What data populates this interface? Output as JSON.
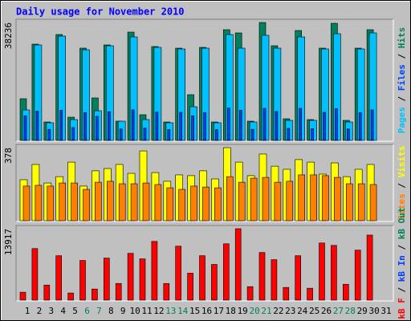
{
  "title": "Daily usage for November 2010",
  "chart_data": [
    {
      "type": "bar",
      "ylim": [
        0,
        38236
      ],
      "yticks": [
        38236
      ],
      "legend": [
        {
          "text": "Pages",
          "color": "#00c0ff"
        },
        {
          "text": "Files",
          "color": "#0040ff"
        },
        {
          "text": "Hits",
          "color": "#00805c"
        }
      ],
      "separator": " / ",
      "series": [
        {
          "color": "#00805c",
          "values": [
            13525,
            31212,
            5982,
            34333,
            7543,
            29912,
            13785,
            30952,
            6242,
            35114,
            8323,
            30432,
            5982,
            29912,
            14826,
            30172,
            5982,
            35894,
            34854,
            6242,
            38236,
            30692,
            7023,
            35634,
            6763,
            29912,
            37975,
            6503,
            29912,
            35894,
            null
          ]
        },
        {
          "color": "#00c0ff",
          "values": [
            9884,
            30952,
            5722,
            33813,
            6763,
            29391,
            9624,
            30692,
            6242,
            33553,
            6763,
            30172,
            5722,
            29651,
            10924,
            29912,
            5722,
            34333,
            29912,
            5982,
            34073,
            29912,
            6503,
            33553,
            6503,
            29651,
            34593,
            5982,
            29651,
            34853,
            null
          ]
        },
        {
          "color": "#0040ff",
          "values": [
            8000,
            9500,
            3600,
            9800,
            4200,
            9000,
            7800,
            9300,
            3700,
            9900,
            4000,
            9200,
            3500,
            9100,
            8000,
            9000,
            3500,
            10500,
            9800,
            3600,
            10400,
            9400,
            3900,
            10400,
            3800,
            9100,
            10300,
            3700,
            9000,
            9900,
            null
          ]
        }
      ]
    },
    {
      "type": "bar",
      "ylim": [
        0,
        378
      ],
      "yticks": [
        378
      ],
      "legend": [
        {
          "text": "Sites",
          "color": "#ff8000"
        },
        {
          "text": "Visits",
          "color": "#ffff00"
        }
      ],
      "separator": " / ",
      "series": [
        {
          "color": "#ffff00",
          "values": [
            212,
            291,
            195,
            228,
            303,
            179,
            258,
            270,
            291,
            245,
            361,
            249,
            204,
            237,
            233,
            258,
            216,
            378,
            303,
            233,
            345,
            282,
            266,
            316,
            303,
            241,
            299,
            228,
            266,
            291,
            null
          ]
        },
        {
          "color": "#ff8000",
          "values": [
            179,
            183,
            179,
            195,
            195,
            162,
            199,
            204,
            191,
            191,
            195,
            187,
            170,
            162,
            179,
            174,
            170,
            228,
            199,
            220,
            224,
            199,
            204,
            237,
            237,
            233,
            224,
            191,
            191,
            187,
            null
          ]
        }
      ]
    },
    {
      "type": "bar",
      "ylim": [
        0,
        13917
      ],
      "yticks": [
        13917
      ],
      "legend": [
        {
          "text": "kB F",
          "color": "#ff0000"
        },
        {
          "text": "kB In",
          "color": "#0040ff"
        },
        {
          "text": "kB Out",
          "color": "#00805c"
        }
      ],
      "separator": " / ",
      "categories": [
        "1",
        "2",
        "3",
        "4",
        "5",
        "6",
        "7",
        "8",
        "9",
        "10",
        "11",
        "12",
        "13",
        "14",
        "15",
        "16",
        "17",
        "18",
        "19",
        "20",
        "21",
        "22",
        "23",
        "24",
        "25",
        "26",
        "27",
        "28",
        "29",
        "30",
        "31"
      ],
      "category_colors": [
        "#000000",
        "#000000",
        "#000000",
        "#000000",
        "#000000",
        "#00805c",
        "#00805c",
        "#000000",
        "#000000",
        "#000000",
        "#000000",
        "#000000",
        "#00805c",
        "#00805c",
        "#000000",
        "#000000",
        "#000000",
        "#000000",
        "#000000",
        "#00805c",
        "#00805c",
        "#000000",
        "#000000",
        "#000000",
        "#000000",
        "#000000",
        "#00805c",
        "#00805c",
        "#000000",
        "#000000",
        "#000000"
      ],
      "series": [
        {
          "color": "#ff0000",
          "values": [
            1546,
            10051,
            2937,
            8658,
            1391,
            7731,
            2164,
            8194,
            3247,
            9122,
            8040,
            11441,
            3247,
            10513,
            5257,
            8658,
            6957,
            10977,
            13917,
            2628,
            9276,
            7885,
            2474,
            8658,
            2319,
            11132,
            10668,
            3092,
            9740,
            12678,
            null
          ]
        }
      ]
    }
  ]
}
